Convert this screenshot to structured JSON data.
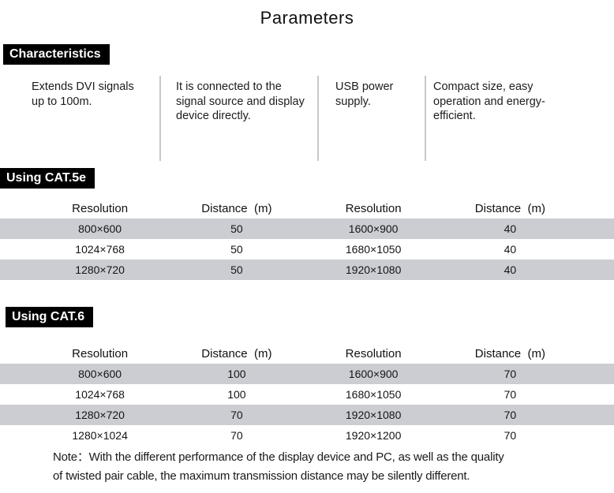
{
  "title": "Parameters",
  "characteristics": {
    "label": "Characteristics",
    "items": [
      "Extends DVI signals up to 100m.",
      "It is connected to the signal source and display device directly.",
      "USB power supply.",
      "Compact size, easy operation and energy-efficient."
    ]
  },
  "tables": [
    {
      "label": "Using CAT.5e",
      "headers": [
        "Resolution",
        "Distance  (m)",
        "Resolution",
        "Distance  (m)"
      ],
      "rows": [
        [
          "800×600",
          "50",
          "1600×900",
          "40"
        ],
        [
          "1024×768",
          "50",
          "1680×1050",
          "40"
        ],
        [
          "1280×720",
          "50",
          "1920×1080",
          "40"
        ]
      ]
    },
    {
      "label": "Using CAT.6",
      "headers": [
        "Resolution",
        "Distance  (m)",
        "Resolution",
        "Distance  (m)"
      ],
      "rows": [
        [
          "800×600",
          "100",
          "1600×900",
          "70"
        ],
        [
          "1024×768",
          "100",
          "1680×1050",
          "70"
        ],
        [
          "1280×720",
          "70",
          "1920×1080",
          "70"
        ],
        [
          "1280×1024",
          "70",
          "1920×1200",
          "70"
        ]
      ]
    }
  ],
  "note": {
    "line1": "Note：With the different performance of the display device and PC, as well as the quality",
    "line2": "of twisted pair cable, the maximum transmission distance may be silently different."
  },
  "colors": {
    "stripe": "#cbcdd2",
    "label_background": "#000000",
    "label_text": "#ffffff",
    "divider": "#c6c8ca"
  }
}
